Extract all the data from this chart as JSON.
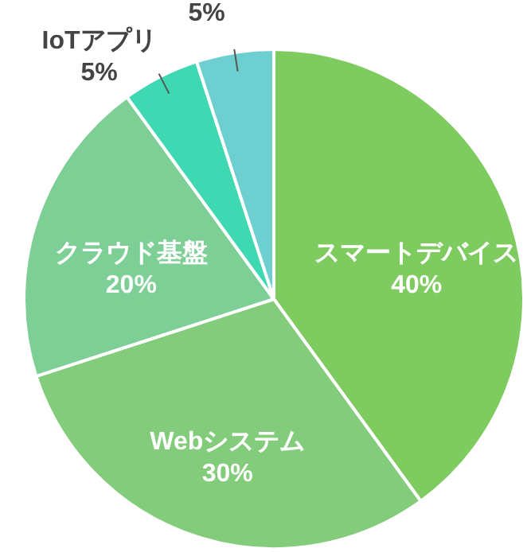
{
  "chart_data": {
    "type": "pie",
    "categories": [
      "スマートデバイス",
      "Webシステム",
      "クラウド基盤",
      "IoTアプリ",
      null
    ],
    "values": [
      40,
      30,
      20,
      5,
      5
    ],
    "value_labels": [
      "40%",
      "30%",
      "20%",
      "5%",
      "5%"
    ],
    "colors": [
      "#7ecb5f",
      "#82cc7b",
      "#7ecf95",
      "#3ed8b3",
      "#6dcfcf"
    ]
  }
}
